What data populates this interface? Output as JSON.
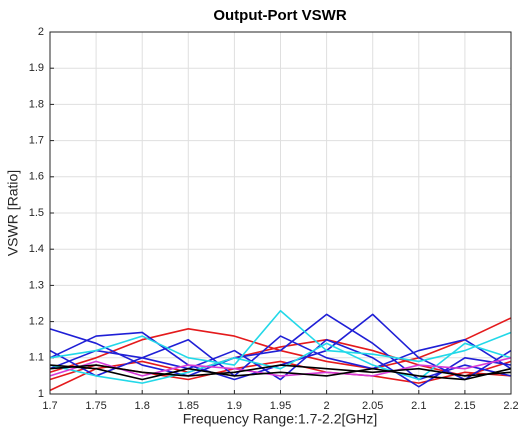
{
  "chart_data": {
    "type": "line",
    "title": "Output-Port VSWR",
    "xlabel": "Frequency Range:1.7-2.2[GHz]",
    "ylabel": "VSWR [Ratio]",
    "x": [
      1.7,
      1.75,
      1.8,
      1.85,
      1.9,
      1.95,
      2,
      2.05,
      2.1,
      2.15,
      2.2
    ],
    "xlim": [
      1.7,
      2.2
    ],
    "xticks": [
      1.7,
      1.75,
      1.8,
      1.85,
      1.9,
      1.95,
      2,
      2.05,
      2.1,
      2.15,
      2.2
    ],
    "ylim": [
      1,
      2
    ],
    "yticks": [
      1,
      1.1,
      1.2,
      1.3,
      1.4,
      1.5,
      1.6,
      1.7,
      1.8,
      1.9,
      2
    ],
    "grid": true,
    "series": [
      {
        "color": "#e41a1c",
        "values": [
          1.06,
          1.1,
          1.15,
          1.18,
          1.16,
          1.12,
          1.09,
          1.07,
          1.1,
          1.15,
          1.21
        ]
      },
      {
        "color": "#e41a1c",
        "values": [
          1.01,
          1.07,
          1.09,
          1.06,
          1.1,
          1.13,
          1.15,
          1.12,
          1.08,
          1.05,
          1.09
        ]
      },
      {
        "color": "#e41a1c",
        "values": [
          1.04,
          1.08,
          1.06,
          1.04,
          1.07,
          1.09,
          1.06,
          1.05,
          1.03,
          1.06,
          1.05
        ]
      },
      {
        "color": "#1f1fd6",
        "values": [
          1.18,
          1.14,
          1.08,
          1.05,
          1.1,
          1.12,
          1.22,
          1.14,
          1.04,
          1.08,
          1.05
        ]
      },
      {
        "color": "#1f1fd6",
        "values": [
          1.1,
          1.16,
          1.17,
          1.08,
          1.04,
          1.08,
          1.12,
          1.22,
          1.1,
          1.04,
          1.12
        ]
      },
      {
        "color": "#1f1fd6",
        "values": [
          1.07,
          1.12,
          1.1,
          1.15,
          1.05,
          1.16,
          1.1,
          1.07,
          1.12,
          1.15,
          1.07
        ]
      },
      {
        "color": "#1f1fd6",
        "values": [
          1.12,
          1.05,
          1.1,
          1.07,
          1.12,
          1.04,
          1.15,
          1.1,
          1.02,
          1.1,
          1.08
        ]
      },
      {
        "color": "#22d8e8",
        "values": [
          1.1,
          1.12,
          1.16,
          1.1,
          1.08,
          1.23,
          1.12,
          1.11,
          1.09,
          1.12,
          1.17
        ]
      },
      {
        "color": "#22d8e8",
        "values": [
          1.08,
          1.05,
          1.03,
          1.06,
          1.1,
          1.07,
          1.14,
          1.08,
          1.04,
          1.14,
          1.1
        ]
      },
      {
        "color": "#d63bd6",
        "values": [
          1.05,
          1.09,
          1.05,
          1.08,
          1.07,
          1.05,
          1.06,
          1.05,
          1.08,
          1.07,
          1.1
        ]
      },
      {
        "color": "#000000",
        "values": [
          1.07,
          1.08,
          1.06,
          1.05,
          1.06,
          1.08,
          1.07,
          1.06,
          1.07,
          1.05,
          1.06
        ]
      },
      {
        "color": "#000000",
        "values": [
          1.08,
          1.07,
          1.04,
          1.07,
          1.05,
          1.06,
          1.05,
          1.07,
          1.05,
          1.04,
          1.07
        ]
      }
    ]
  }
}
